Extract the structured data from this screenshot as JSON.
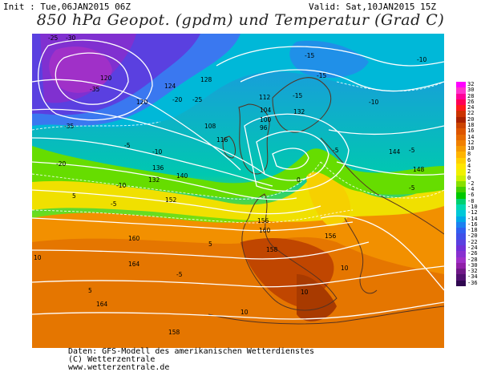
{
  "header": {
    "init": "Init : Tue,06JAN2015 06Z",
    "valid": "Valid: Sat,10JAN2015 15Z",
    "title": "850 hPa Geopot. (gpdm) und Temperatur (Grad C)"
  },
  "colorbar": {
    "labels": [
      "32",
      "30",
      "28",
      "26",
      "24",
      "22",
      "20",
      "18",
      "16",
      "14",
      "12",
      "10",
      "8",
      "6",
      "4",
      "2",
      "0",
      "-2",
      "-4",
      "-6",
      "-8",
      "-10",
      "-12",
      "-14",
      "-16",
      "-18",
      "-20",
      "-22",
      "-24",
      "-26",
      "-28",
      "-30",
      "-32",
      "-34",
      "-36"
    ],
    "colors": [
      "#ff00ff",
      "#ff33cc",
      "#ff0099",
      "#ff0055",
      "#ff1a1a",
      "#cc3300",
      "#aa2200",
      "#cc4400",
      "#dd5500",
      "#e66a00",
      "#f08000",
      "#f59a00",
      "#ffb400",
      "#ffd000",
      "#ffe600",
      "#f0f000",
      "#ccf000",
      "#88e000",
      "#44d000",
      "#00c800",
      "#00d070",
      "#00d8b0",
      "#00c8d8",
      "#00a8e8",
      "#1d80f0",
      "#3060f0",
      "#4050e8",
      "#5a40e0",
      "#7030d8",
      "#8830d0",
      "#a030c8",
      "#9020a8",
      "#701888",
      "#501070",
      "#300850"
    ]
  },
  "map": {
    "geopotential_labels": [
      "120",
      "120",
      "124",
      "128",
      "136",
      "140",
      "144",
      "148",
      "152",
      "156",
      "160",
      "164",
      "158",
      "116",
      "112",
      "108",
      "104",
      "100",
      "96",
      "132",
      "132",
      "156",
      "160",
      "164",
      "158"
    ],
    "temperature_labels": [
      "-25",
      "-30",
      "-35",
      "-35",
      "-25",
      "-20",
      "-20",
      "-15",
      "-10",
      "-5",
      "0",
      "5",
      "10",
      "-5",
      "-10",
      "-15",
      "-5",
      "-10",
      "-5",
      "-5",
      "5",
      "10",
      "5",
      "10",
      "-5",
      "-10",
      "-15",
      "10"
    ]
  },
  "footer": {
    "line1": "Daten: GFS-Modell des amerikanischen Wetterdienstes",
    "line2": "(C) Wetterzentrale",
    "line3": "www.wetterzentrale.de"
  }
}
